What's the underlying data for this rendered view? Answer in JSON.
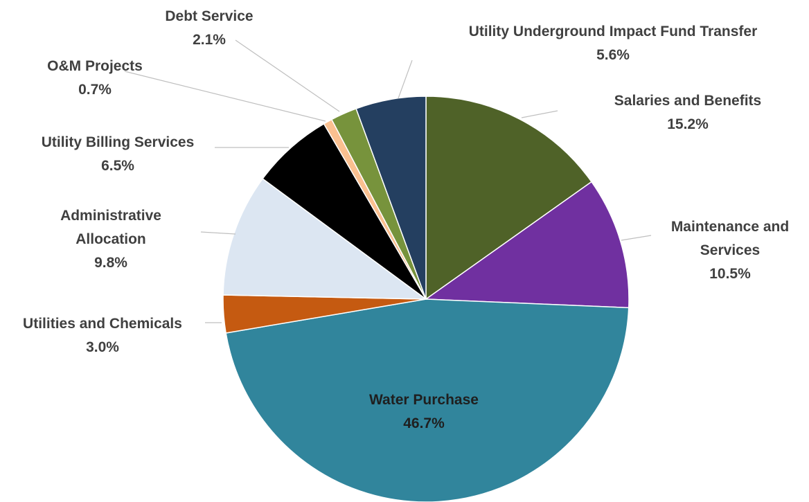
{
  "chart_data": {
    "type": "pie",
    "start_angle_deg": 0,
    "direction": "clockwise",
    "slices": [
      {
        "label": "Salaries and Benefits",
        "label_lines": [
          "Salaries and Benefits"
        ],
        "value": 15.2,
        "display": "15.2%",
        "color": "#4f6228"
      },
      {
        "label": "Maintenance and Services",
        "label_lines": [
          "Maintenance and",
          "Services"
        ],
        "value": 10.5,
        "display": "10.5%",
        "color": "#7030a0"
      },
      {
        "label": "Water Purchase",
        "label_lines": [
          "Water Purchase"
        ],
        "value": 46.7,
        "display": "46.7%",
        "color": "#31859c"
      },
      {
        "label": "Utilities and Chemicals",
        "label_lines": [
          "Utilities and Chemicals"
        ],
        "value": 3.0,
        "display": "3.0%",
        "color": "#c55a11"
      },
      {
        "label": "Administrative Allocation",
        "label_lines": [
          "Administrative",
          "Allocation"
        ],
        "value": 9.8,
        "display": "9.8%",
        "color": "#dce6f2"
      },
      {
        "label": "Utility Billing Services",
        "label_lines": [
          "Utility Billing Services"
        ],
        "value": 6.5,
        "display": "6.5%",
        "color": "#000000"
      },
      {
        "label": "O&M Projects",
        "label_lines": [
          "O&M Projects"
        ],
        "value": 0.7,
        "display": "0.7%",
        "color": "#fac090"
      },
      {
        "label": "Debt Service",
        "label_lines": [
          "Debt Service"
        ],
        "value": 2.1,
        "display": "2.1%",
        "color": "#77933c"
      },
      {
        "label": "Utility Underground Impact Fund Transfer",
        "label_lines": [
          "Utility Underground Impact Fund Transfer"
        ],
        "value": 5.6,
        "display": "5.6%",
        "color": "#243f60"
      }
    ]
  }
}
